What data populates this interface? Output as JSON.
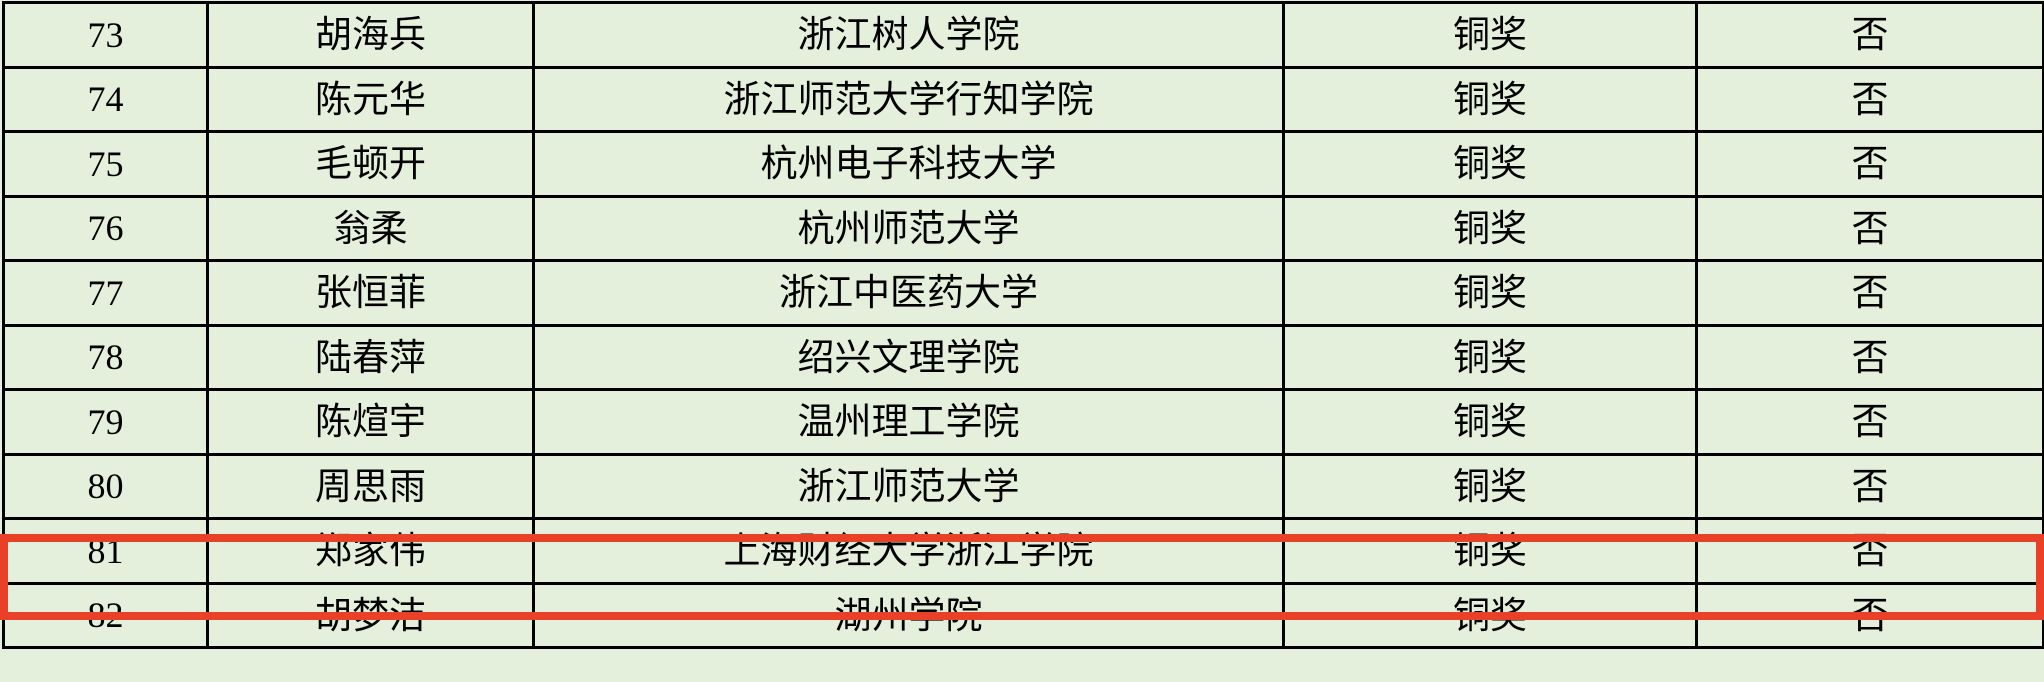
{
  "highlight_color": "#e84127",
  "rows": [
    {
      "no": "73",
      "name": "胡海兵",
      "school": "浙江树人学院",
      "award": "铜奖",
      "flag": "否"
    },
    {
      "no": "74",
      "name": "陈元华",
      "school": "浙江师范大学行知学院",
      "award": "铜奖",
      "flag": "否"
    },
    {
      "no": "75",
      "name": "毛顿开",
      "school": "杭州电子科技大学",
      "award": "铜奖",
      "flag": "否"
    },
    {
      "no": "76",
      "name": "翁柔",
      "school": "杭州师范大学",
      "award": "铜奖",
      "flag": "否"
    },
    {
      "no": "77",
      "name": "张恒菲",
      "school": "浙江中医药大学",
      "award": "铜奖",
      "flag": "否"
    },
    {
      "no": "78",
      "name": "陆春萍",
      "school": "绍兴文理学院",
      "award": "铜奖",
      "flag": "否"
    },
    {
      "no": "79",
      "name": "陈煊宇",
      "school": "温州理工学院",
      "award": "铜奖",
      "flag": "否"
    },
    {
      "no": "80",
      "name": "周思雨",
      "school": "浙江师范大学",
      "award": "铜奖",
      "flag": "否"
    },
    {
      "no": "81",
      "name": "郑家伟",
      "school": "上海财经大学浙江学院",
      "award": "铜奖",
      "flag": "否",
      "highlighted": true
    },
    {
      "no": "82",
      "name": "胡梦洁",
      "school": "湖州学院",
      "award": "铜奖",
      "flag": "否"
    }
  ]
}
